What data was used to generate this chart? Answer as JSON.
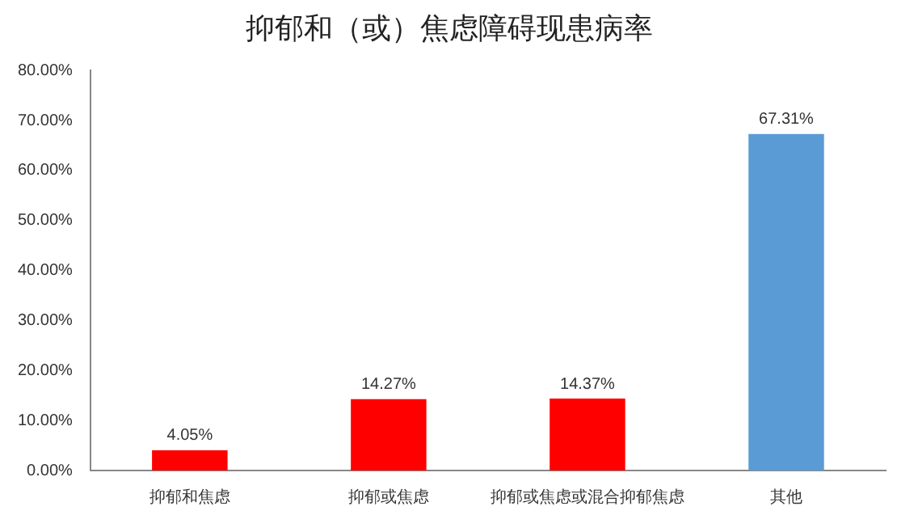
{
  "chart_data": {
    "type": "bar",
    "title": "抑郁和（或）焦虑障碍现患病率",
    "categories": [
      "抑郁和焦虑",
      "抑郁或焦虑",
      "抑郁或焦虑或混合抑郁焦虑",
      "其他"
    ],
    "values": [
      4.05,
      14.27,
      14.37,
      67.31
    ],
    "colors": [
      "#ff0000",
      "#ff0000",
      "#ff0000",
      "#5b9bd5"
    ],
    "value_labels": [
      "4.05%",
      "14.27%",
      "14.37%",
      "67.31%"
    ],
    "ylim": [
      0,
      80
    ],
    "yticks": [
      {
        "value": 0,
        "label": "0.00%"
      },
      {
        "value": 10,
        "label": "10.00%"
      },
      {
        "value": 20,
        "label": "20.00%"
      },
      {
        "value": 30,
        "label": "30.00%"
      },
      {
        "value": 40,
        "label": "40.00%"
      },
      {
        "value": 50,
        "label": "50.00%"
      },
      {
        "value": 60,
        "label": "60.00%"
      },
      {
        "value": 70,
        "label": "70.00%"
      },
      {
        "value": 80,
        "label": "80.00%"
      }
    ],
    "grid": false,
    "legend": false
  }
}
